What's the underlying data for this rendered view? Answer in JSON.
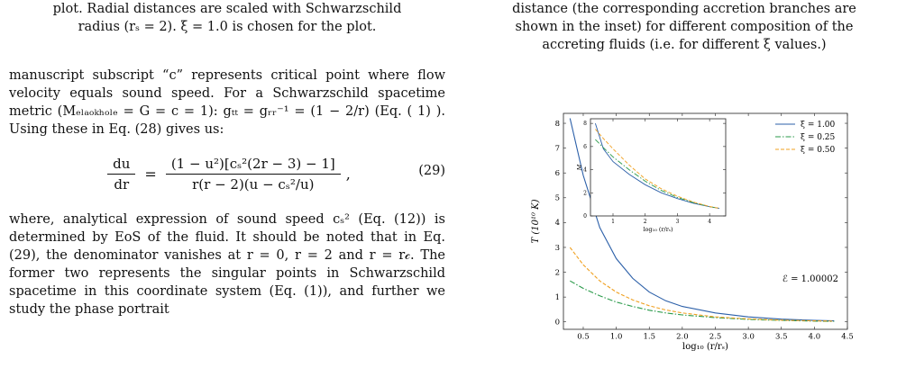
{
  "left_column": {
    "caption_line1": "plot. Radial distances are scaled with Schwarzschild",
    "caption_line2": "radius (rₛ = 2). ξ = 1.0 is chosen for the plot.",
    "para1": "manuscript subscript “c” represents critical point where flow velocity equals sound speed. For a Schwarzschild spacetime metric (Mₑₗₐₒₖₕₒₗₑ = G = c = 1): gₜₜ = gᵣᵣ⁻¹ = (1 − 2/r) (Eq. ( 1) ). Using these in Eq. (28) gives us:",
    "eq_lhs_num": "du",
    "eq_lhs_den": "dr",
    "eq_rhs_num": "(1 − u²)[cₛ²(2r − 3) − 1]",
    "eq_rhs_den": "r(r − 2)(u − cₛ²/u)",
    "eq_number": "(29)",
    "para2": "where, analytical expression of sound speed cₛ² (Eq. (12)) is determined by EoS of the fluid. It should be noted that in Eq. (29), the denominator vanishes at r = 0, r = 2 and r = r𝒸. The former two represents the singular points in Schwarzschild spacetime in this coordinate system (Eq. (1)), and further we study the phase portrait"
  },
  "right_column": {
    "caption_line1": "distance (the corresponding accretion branches are",
    "caption_line2": "shown in the inset) for different composition of the",
    "caption_line3": "accreting fluids (i.e. for different ξ values.)"
  },
  "chart_data": {
    "type": "line",
    "xlabel": "log₁₀ (r/rₛ)",
    "ylabel": "T (10¹⁰ K)",
    "xlim": [
      0.2,
      4.5
    ],
    "ylim": [
      -0.3,
      8.4
    ],
    "x_ticks": [
      "0.5",
      "1.0",
      "1.5",
      "2.0",
      "2.5",
      "3.0",
      "3.5",
      "4.0",
      "4.5"
    ],
    "y_ticks": [
      "0",
      "1",
      "2",
      "3",
      "4",
      "5",
      "6",
      "7",
      "8"
    ],
    "annotation": "ℰ = 1.00002",
    "legend_position": "top-right",
    "series": [
      {
        "name": "ξ = 1.00",
        "color": "#2b5fa8",
        "dash": "solid",
        "x": [
          0.3,
          0.5,
          0.75,
          1.0,
          1.25,
          1.5,
          1.75,
          2.0,
          2.5,
          3.0,
          3.5,
          4.0,
          4.3
        ],
        "y": [
          8.2,
          5.9,
          3.8,
          2.55,
          1.75,
          1.2,
          0.85,
          0.62,
          0.36,
          0.2,
          0.11,
          0.06,
          0.04
        ]
      },
      {
        "name": "ξ = 0.25",
        "color": "#2a9a4a",
        "dash": "dashdot",
        "x": [
          0.3,
          0.5,
          0.75,
          1.0,
          1.25,
          1.5,
          1.75,
          2.0,
          2.5,
          3.0,
          3.5,
          4.0,
          4.3
        ],
        "y": [
          1.65,
          1.35,
          1.05,
          0.8,
          0.62,
          0.47,
          0.36,
          0.28,
          0.17,
          0.1,
          0.06,
          0.03,
          0.02
        ]
      },
      {
        "name": "ξ = 0.50",
        "color": "#f0a020",
        "dash": "dashed",
        "x": [
          0.3,
          0.5,
          0.75,
          1.0,
          1.25,
          1.5,
          1.75,
          2.0,
          2.5,
          3.0,
          3.5,
          4.0,
          4.3
        ],
        "y": [
          3.0,
          2.3,
          1.65,
          1.2,
          0.88,
          0.65,
          0.48,
          0.36,
          0.2,
          0.12,
          0.07,
          0.04,
          0.03
        ]
      }
    ],
    "inset": {
      "type": "line",
      "xlabel": "log₁₀ (r/rₛ)",
      "ylabel": "M",
      "xlim": [
        0.3,
        4.5
      ],
      "ylim": [
        0,
        8.4
      ],
      "x_ticks": [
        "1",
        "2",
        "3",
        "4"
      ],
      "y_ticks": [
        "0",
        "2",
        "4",
        "6",
        "8"
      ],
      "series": [
        {
          "name": "ξ = 1.00",
          "color": "#2b5fa8",
          "dash": "solid",
          "x": [
            0.45,
            0.7,
            1.0,
            1.5,
            2.0,
            2.5,
            3.0,
            3.5,
            4.0,
            4.3
          ],
          "y": [
            8.0,
            5.8,
            4.7,
            3.6,
            2.7,
            2.0,
            1.5,
            1.1,
            0.8,
            0.65
          ]
        },
        {
          "name": "ξ = 0.25",
          "color": "#2a9a4a",
          "dash": "dashdot",
          "x": [
            0.45,
            0.7,
            1.0,
            1.5,
            2.0,
            2.5,
            3.0,
            3.5,
            4.0,
            4.3
          ],
          "y": [
            6.6,
            5.9,
            5.1,
            4.0,
            3.0,
            2.2,
            1.6,
            1.15,
            0.8,
            0.65
          ]
        },
        {
          "name": "ξ = 0.50",
          "color": "#f0a020",
          "dash": "dashed",
          "x": [
            0.45,
            0.7,
            1.0,
            1.5,
            2.0,
            2.5,
            3.0,
            3.5,
            4.0,
            4.3
          ],
          "y": [
            7.5,
            6.7,
            5.8,
            4.4,
            3.2,
            2.35,
            1.7,
            1.2,
            0.82,
            0.66
          ]
        }
      ]
    }
  }
}
